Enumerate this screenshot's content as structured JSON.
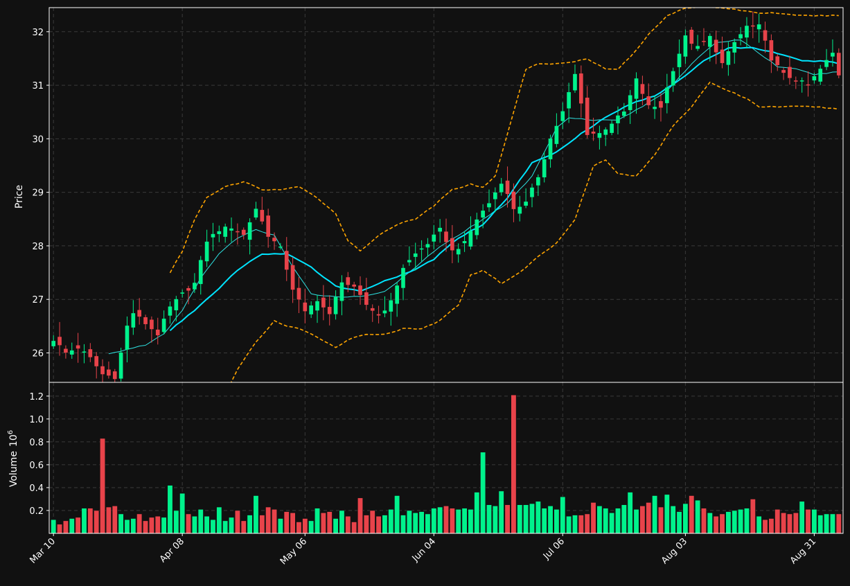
{
  "theme": {
    "background": "#111111",
    "up_color": "#00f28c",
    "down_color": "#e8434a",
    "grid_color": "#3a3a3a",
    "text_color": "#ffffff",
    "frame_color": "#ffffff",
    "ma_fast_color": "#2ee3e3",
    "ma_slow_color": "#00e5ff",
    "band_color": "#ffa500"
  },
  "chart_data": {
    "type": "candlestick",
    "panels": [
      {
        "name": "price",
        "ylabel": "Price",
        "ylim": [
          25.45,
          32.45
        ],
        "yticks": [
          26,
          27,
          28,
          29,
          30,
          31,
          32
        ]
      },
      {
        "name": "volume",
        "ylabel": "Volume",
        "ylabel_exponent": "10",
        "ylabel_power": "6",
        "ylim": [
          0,
          1.32
        ],
        "yticks": [
          0.2,
          0.4,
          0.6,
          0.8,
          1.0,
          1.2
        ],
        "ytick_labels": [
          "0.2",
          "0.4",
          "0.6",
          "0.8",
          "1.0",
          "1.2"
        ]
      }
    ],
    "x_tick_labels": [
      {
        "label": "Mar 10",
        "index": 0
      },
      {
        "label": "Apr 08",
        "index": 21
      },
      {
        "label": "May 06",
        "index": 41
      },
      {
        "label": "Jun 04",
        "index": 62
      },
      {
        "label": "Jul 06",
        "index": 83
      },
      {
        "label": "Aug 03",
        "index": 103
      },
      {
        "label": "Aug 31",
        "index": 124
      }
    ],
    "grid": true,
    "anchors": {
      "close": [
        [
          0,
          26.25
        ],
        [
          2,
          26.0
        ],
        [
          4,
          26.1
        ],
        [
          6,
          25.9
        ],
        [
          8,
          25.6
        ],
        [
          10,
          25.55
        ],
        [
          11,
          26.0
        ],
        [
          12,
          26.5
        ],
        [
          13,
          26.75
        ],
        [
          15,
          26.55
        ],
        [
          17,
          26.35
        ],
        [
          19,
          26.85
        ],
        [
          21,
          27.1
        ],
        [
          23,
          27.3
        ],
        [
          25,
          28.1
        ],
        [
          27,
          28.3
        ],
        [
          29,
          28.35
        ],
        [
          31,
          28.2
        ],
        [
          33,
          28.7
        ],
        [
          35,
          28.2
        ],
        [
          37,
          27.95
        ],
        [
          39,
          27.2
        ],
        [
          41,
          26.75
        ],
        [
          43,
          27.0
        ],
        [
          45,
          26.7
        ],
        [
          47,
          27.35
        ],
        [
          49,
          27.2
        ],
        [
          51,
          26.9
        ],
        [
          53,
          26.7
        ],
        [
          55,
          26.95
        ],
        [
          57,
          27.6
        ],
        [
          59,
          27.85
        ],
        [
          61,
          28.05
        ],
        [
          63,
          28.3
        ],
        [
          65,
          27.9
        ],
        [
          67,
          28.05
        ],
        [
          69,
          28.5
        ],
        [
          71,
          28.8
        ],
        [
          73,
          29.2
        ],
        [
          75,
          28.7
        ],
        [
          77,
          28.8
        ],
        [
          79,
          29.3
        ],
        [
          81,
          30.0
        ],
        [
          83,
          30.5
        ],
        [
          85,
          31.2
        ],
        [
          87,
          30.1
        ],
        [
          89,
          30.1
        ],
        [
          91,
          30.3
        ],
        [
          93,
          30.5
        ],
        [
          95,
          31.1
        ],
        [
          97,
          30.6
        ],
        [
          99,
          30.6
        ],
        [
          101,
          31.3
        ],
        [
          103,
          31.9
        ],
        [
          105,
          31.7
        ],
        [
          107,
          31.9
        ],
        [
          109,
          31.4
        ],
        [
          111,
          31.8
        ],
        [
          113,
          32.1
        ],
        [
          115,
          32.1
        ],
        [
          117,
          31.5
        ],
        [
          119,
          31.2
        ],
        [
          121,
          31.1
        ],
        [
          123,
          31.0
        ],
        [
          125,
          31.3
        ],
        [
          127,
          31.6
        ],
        [
          128,
          31.2
        ]
      ],
      "ma_fast": [
        [
          9,
          25.98
        ],
        [
          15,
          26.15
        ],
        [
          18,
          26.35
        ],
        [
          21,
          26.8
        ],
        [
          24,
          27.4
        ],
        [
          27,
          27.85
        ],
        [
          30,
          28.15
        ],
        [
          33,
          28.3
        ],
        [
          36,
          28.2
        ],
        [
          39,
          27.6
        ],
        [
          42,
          27.1
        ],
        [
          46,
          27.05
        ],
        [
          50,
          27.05
        ],
        [
          54,
          27.15
        ],
        [
          58,
          27.5
        ],
        [
          62,
          27.9
        ],
        [
          66,
          28.2
        ],
        [
          70,
          28.5
        ],
        [
          74,
          28.8
        ],
        [
          78,
          29.3
        ],
        [
          82,
          30.2
        ],
        [
          84,
          30.4
        ],
        [
          88,
          30.35
        ],
        [
          92,
          30.35
        ],
        [
          96,
          30.6
        ],
        [
          100,
          30.9
        ],
        [
          104,
          31.4
        ],
        [
          108,
          31.8
        ],
        [
          112,
          31.85
        ],
        [
          115,
          31.6
        ],
        [
          118,
          31.35
        ],
        [
          121,
          31.3
        ],
        [
          124,
          31.2
        ],
        [
          128,
          31.25
        ]
      ],
      "ma_slow": [
        [
          19,
          26.42
        ],
        [
          23,
          26.8
        ],
        [
          27,
          27.2
        ],
        [
          30,
          27.55
        ],
        [
          34,
          27.85
        ],
        [
          38,
          27.85
        ],
        [
          42,
          27.6
        ],
        [
          46,
          27.25
        ],
        [
          50,
          27.15
        ],
        [
          54,
          27.35
        ],
        [
          58,
          27.5
        ],
        [
          62,
          27.75
        ],
        [
          66,
          28.15
        ],
        [
          70,
          28.4
        ],
        [
          74,
          28.9
        ],
        [
          78,
          29.55
        ],
        [
          82,
          29.75
        ],
        [
          86,
          30.1
        ],
        [
          90,
          30.4
        ],
        [
          94,
          30.65
        ],
        [
          98,
          30.8
        ],
        [
          102,
          31.1
        ],
        [
          106,
          31.45
        ],
        [
          110,
          31.7
        ],
        [
          114,
          31.7
        ],
        [
          118,
          31.6
        ],
        [
          122,
          31.45
        ],
        [
          126,
          31.45
        ],
        [
          128,
          31.4
        ]
      ],
      "band_upper": [
        [
          19,
          27.5
        ],
        [
          21,
          27.9
        ],
        [
          23,
          28.5
        ],
        [
          25,
          28.9
        ],
        [
          28,
          29.1
        ],
        [
          31,
          29.2
        ],
        [
          34,
          29.05
        ],
        [
          37,
          29.05
        ],
        [
          40,
          29.1
        ],
        [
          43,
          28.9
        ],
        [
          46,
          28.6
        ],
        [
          48,
          28.1
        ],
        [
          50,
          27.9
        ],
        [
          53,
          28.2
        ],
        [
          56,
          28.4
        ],
        [
          59,
          28.5
        ],
        [
          62,
          28.75
        ],
        [
          65,
          29.05
        ],
        [
          68,
          29.15
        ],
        [
          70,
          29.1
        ],
        [
          72,
          29.3
        ],
        [
          75,
          30.5
        ],
        [
          77,
          31.3
        ],
        [
          79,
          31.4
        ],
        [
          82,
          31.4
        ],
        [
          85,
          31.45
        ],
        [
          87,
          31.5
        ],
        [
          90,
          31.3
        ],
        [
          92,
          31.3
        ],
        [
          95,
          31.65
        ],
        [
          97,
          31.95
        ],
        [
          100,
          32.3
        ],
        [
          103,
          32.45
        ],
        [
          106,
          32.45
        ],
        [
          109,
          32.45
        ],
        [
          112,
          32.4
        ],
        [
          115,
          32.35
        ],
        [
          118,
          32.35
        ],
        [
          121,
          32.3
        ],
        [
          124,
          32.3
        ],
        [
          128,
          32.3
        ]
      ],
      "band_lower": [
        [
          25,
          25.0
        ],
        [
          28,
          25.2
        ],
        [
          30,
          25.7
        ],
        [
          33,
          26.2
        ],
        [
          36,
          26.6
        ],
        [
          38,
          26.5
        ],
        [
          40,
          26.45
        ],
        [
          43,
          26.3
        ],
        [
          46,
          26.1
        ],
        [
          48,
          26.25
        ],
        [
          51,
          26.35
        ],
        [
          54,
          26.35
        ],
        [
          57,
          26.45
        ],
        [
          60,
          26.45
        ],
        [
          63,
          26.6
        ],
        [
          66,
          26.9
        ],
        [
          68,
          27.45
        ],
        [
          70,
          27.55
        ],
        [
          73,
          27.3
        ],
        [
          76,
          27.5
        ],
        [
          79,
          27.8
        ],
        [
          82,
          28.05
        ],
        [
          85,
          28.5
        ],
        [
          88,
          29.5
        ],
        [
          90,
          29.6
        ],
        [
          92,
          29.35
        ],
        [
          95,
          29.3
        ],
        [
          98,
          29.7
        ],
        [
          101,
          30.25
        ],
        [
          104,
          30.6
        ],
        [
          107,
          31.05
        ],
        [
          110,
          30.9
        ],
        [
          113,
          30.75
        ],
        [
          115,
          30.6
        ],
        [
          118,
          30.6
        ],
        [
          121,
          30.6
        ],
        [
          124,
          30.6
        ],
        [
          128,
          30.55
        ]
      ]
    },
    "volume_values": [
      0.12,
      0.08,
      0.11,
      0.13,
      0.14,
      0.22,
      0.22,
      0.2,
      0.83,
      0.23,
      0.24,
      0.17,
      0.12,
      0.13,
      0.17,
      0.11,
      0.14,
      0.15,
      0.14,
      0.42,
      0.2,
      0.35,
      0.17,
      0.15,
      0.21,
      0.15,
      0.12,
      0.23,
      0.11,
      0.14,
      0.2,
      0.11,
      0.16,
      0.33,
      0.16,
      0.23,
      0.21,
      0.13,
      0.19,
      0.18,
      0.1,
      0.13,
      0.11,
      0.22,
      0.18,
      0.19,
      0.13,
      0.2,
      0.15,
      0.1,
      0.31,
      0.16,
      0.2,
      0.15,
      0.16,
      0.21,
      0.33,
      0.16,
      0.2,
      0.18,
      0.19,
      0.17,
      0.22,
      0.23,
      0.24,
      0.22,
      0.21,
      0.22,
      0.21,
      0.36,
      0.71,
      0.25,
      0.24,
      0.37,
      0.25,
      1.21,
      0.25,
      0.25,
      0.26,
      0.28,
      0.22,
      0.24,
      0.21,
      0.32,
      0.15,
      0.16,
      0.16,
      0.17,
      0.27,
      0.24,
      0.22,
      0.18,
      0.22,
      0.25,
      0.36,
      0.21,
      0.24,
      0.27,
      0.33,
      0.23,
      0.34,
      0.24,
      0.19,
      0.26,
      0.33,
      0.29,
      0.22,
      0.18,
      0.15,
      0.17,
      0.19,
      0.2,
      0.21,
      0.22,
      0.3,
      0.15,
      0.12,
      0.13,
      0.21,
      0.18,
      0.17,
      0.18,
      0.28,
      0.21,
      0.21,
      0.16,
      0.17,
      0.17,
      0.17
    ]
  }
}
